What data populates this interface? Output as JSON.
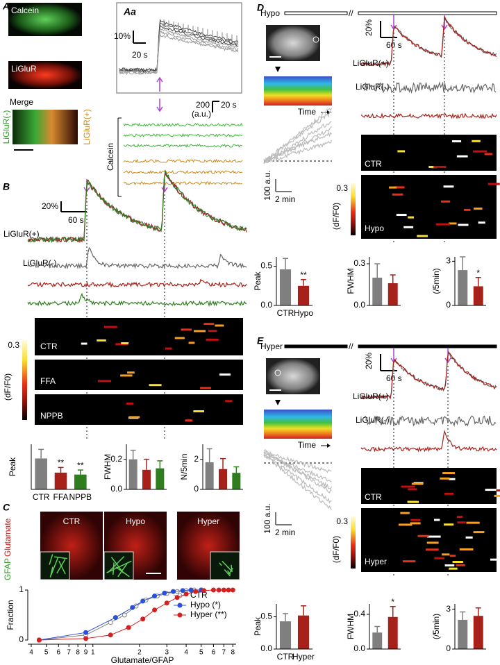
{
  "A": {
    "label": "A",
    "calcein": "Calcein",
    "liglur": "LiGluR",
    "merge": "Merge",
    "neg": "LiGluR(-)",
    "pos": "LiGluR(+)",
    "calcein_axis": "Calcein",
    "inset_label": "Aa",
    "inset_scale_y": "10%",
    "inset_scale_x": "20 s",
    "scale_y": "200",
    "scale_unit": "(a.u.)",
    "scale_x": "20 s"
  },
  "B": {
    "label": "B",
    "scale_y": "20%",
    "scale_x": "60 s",
    "pos": "LiGluR(+)",
    "neg": "LiGluR(-)",
    "raster": [
      "CTR",
      "FFA",
      "NPPB"
    ],
    "cbar_label": "(dF/F0)",
    "cbar_tick": "0.3"
  },
  "C": {
    "label": "C",
    "images": [
      "CTR",
      "Hypo",
      "Hyper"
    ],
    "stain1": "GFAP",
    "stain2": "Glutamate"
  },
  "D": {
    "label": "D",
    "condition": "Hypo",
    "break": "//",
    "scale_y": "20%",
    "scale_x": "60 s",
    "pos": "LiGluR(+)",
    "neg": "LiGluR(-)",
    "time": "Time",
    "kymo_y": "100 a.u.",
    "kymo_x": "2 min",
    "raster": [
      "CTR",
      "Hypo"
    ],
    "cbar_label": "(dF/F0)",
    "cbar_tick": "0.3"
  },
  "E": {
    "label": "E",
    "condition": "Hyper",
    "break": "//",
    "scale_y": "20%",
    "scale_x": "60 s",
    "pos": "LiGluR(+)",
    "neg": "LiGluR(-)",
    "time": "Time",
    "kymo_y": "100 a.u.",
    "kymo_x": "2 min",
    "raster": [
      "CTR",
      "Hyper"
    ],
    "cbar_label": "(dF/F0)",
    "cbar_tick": "0.3"
  },
  "chart_data": [
    {
      "type": "bar",
      "ylabel": "Peak",
      "categories": [
        "CTR",
        "FFA",
        "NPPB"
      ],
      "values": [
        0.48,
        0.26,
        0.23
      ],
      "errors": [
        0.14,
        0.08,
        0.07
      ],
      "colors": [
        "#7f7f7f",
        "#a8201a",
        "#2e7d1f"
      ],
      "ylim": [
        0,
        0.7
      ],
      "annotations": [
        null,
        "**",
        "**"
      ]
    },
    {
      "type": "bar",
      "ylabel": "FWHM",
      "values": [
        0.2,
        0.13,
        0.14
      ],
      "errors": [
        0.06,
        0.07,
        0.05
      ],
      "colors": [
        "#7f7f7f",
        "#a8201a",
        "#2e7d1f"
      ],
      "ylim": [
        0,
        0.3
      ],
      "yticks": [
        {
          "value": 0,
          "label": "0.0"
        },
        {
          "value": 0.2,
          "label": "0.2"
        }
      ]
    },
    {
      "type": "bar",
      "ylabel": "N/5min",
      "values": [
        1.8,
        1.35,
        1.1
      ],
      "errors": [
        0.9,
        0.7,
        0.4
      ],
      "colors": [
        "#7f7f7f",
        "#a8201a",
        "#2e7d1f"
      ],
      "ylim": [
        0,
        3
      ],
      "yticks": [
        0,
        2
      ]
    },
    {
      "type": "line",
      "xlabel": "Glutamate/GFAP",
      "ylabel": "Fraction",
      "log_x": true,
      "xlim": [
        0.38,
        8.4
      ],
      "xticks": [
        {
          "value": 0.4,
          "label": "4"
        },
        {
          "value": 0.5,
          "label": "5"
        },
        {
          "value": 0.6,
          "label": "6"
        },
        {
          "value": 0.7,
          "label": "7"
        },
        {
          "value": 0.8,
          "label": "8"
        },
        {
          "value": 0.9,
          "label": "9"
        },
        1,
        2,
        3,
        4,
        5,
        6,
        7,
        8
      ],
      "ylim": [
        0,
        1
      ],
      "yticks": [
        0,
        1
      ],
      "legend": "right",
      "series": [
        {
          "name": "CTR",
          "color": "#808080",
          "filled": false,
          "x": [
            0.45,
            0.9,
            1.3,
            1.6,
            1.9,
            2.2,
            2.6,
            3,
            3.5,
            4,
            4.5,
            5
          ],
          "values": [
            0,
            0.1,
            0.35,
            0.5,
            0.68,
            0.8,
            0.88,
            0.93,
            0.97,
            0.99,
            1,
            1
          ]
        },
        {
          "name": "Hypo (*)",
          "color": "#2a4fd8",
          "filled": true,
          "x": [
            0.45,
            0.9,
            1.4,
            1.8,
            2.1,
            2.5,
            2.9,
            3.3,
            3.8,
            4.3,
            5
          ],
          "values": [
            0,
            0.15,
            0.45,
            0.65,
            0.78,
            0.88,
            0.94,
            0.97,
            0.99,
            1,
            1
          ]
        },
        {
          "name": "Hyper (**)",
          "color": "#d42020",
          "filled": true,
          "x": [
            0.45,
            0.9,
            1.3,
            1.7,
            2.1,
            2.5,
            3,
            3.5,
            4,
            4.6,
            5.2,
            6,
            6.5,
            7,
            7.5,
            8
          ],
          "values": [
            0,
            0.03,
            0.1,
            0.25,
            0.42,
            0.6,
            0.74,
            0.85,
            0.92,
            0.97,
            0.99,
            1,
            1,
            1,
            1,
            1
          ]
        }
      ]
    },
    {
      "type": "bar",
      "ylabel": "Peak",
      "categories": [
        "CTR",
        "Hypo"
      ],
      "values": [
        0.46,
        0.25
      ],
      "errors": [
        0.14,
        0.08
      ],
      "colors": [
        "#7f7f7f",
        "#a8201a"
      ],
      "ylim": [
        0,
        0.62
      ],
      "yticks": [
        {
          "value": 0,
          "label": "0.0"
        },
        {
          "value": 0.5,
          "label": "0.5"
        }
      ],
      "annotations": [
        null,
        "**"
      ]
    },
    {
      "type": "bar",
      "ylabel": "FWHM",
      "values": [
        0.2,
        0.16
      ],
      "errors": [
        0.1,
        0.06
      ],
      "colors": [
        "#7f7f7f",
        "#a8201a"
      ],
      "ylim": [
        0,
        0.35
      ],
      "yticks": [
        {
          "value": 0,
          "label": "0.0"
        },
        {
          "value": 0.3,
          "label": "0.3"
        }
      ]
    },
    {
      "type": "bar",
      "ylabel": "(/5min)",
      "values": [
        2.4,
        1.3
      ],
      "errors": [
        0.9,
        0.6
      ],
      "colors": [
        "#7f7f7f",
        "#a8201a"
      ],
      "ylim": [
        0,
        3.3
      ],
      "yticks": [
        0,
        3
      ],
      "annotations": [
        null,
        "*"
      ]
    },
    {
      "type": "bar",
      "ylabel": "Peak",
      "categories": [
        "CTR",
        "Hyper"
      ],
      "values": [
        0.43,
        0.52
      ],
      "errors": [
        0.12,
        0.15
      ],
      "colors": [
        "#7f7f7f",
        "#a8201a"
      ],
      "ylim": [
        0,
        0.7
      ],
      "yticks": [
        {
          "value": 0,
          "label": "0.0"
        },
        {
          "value": 0.5,
          "label": "0.5"
        }
      ]
    },
    {
      "type": "bar",
      "ylabel": "FWHM",
      "values": [
        0.19,
        0.37
      ],
      "errors": [
        0.07,
        0.12
      ],
      "colors": [
        "#7f7f7f",
        "#a8201a"
      ],
      "ylim": [
        0,
        0.52
      ],
      "yticks": [
        {
          "value": 0,
          "label": "0.0"
        },
        {
          "value": 0.4,
          "label": "0.4"
        }
      ],
      "annotations": [
        null,
        "*"
      ]
    },
    {
      "type": "bar",
      "ylabel": "(/5min)",
      "values": [
        2.2,
        2.5
      ],
      "errors": [
        0.6,
        0.6
      ],
      "colors": [
        "#7f7f7f",
        "#a8201a"
      ],
      "ylim": [
        0,
        3.4
      ],
      "yticks": [
        0,
        3
      ]
    }
  ]
}
